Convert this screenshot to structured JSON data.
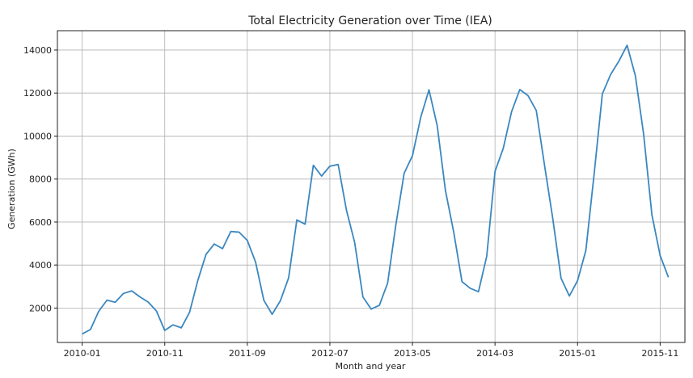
{
  "chart_data": {
    "type": "line",
    "title": "Total Electricity Generation over Time (IEA)",
    "xlabel": "Month and year",
    "ylabel": "Generation (GWh)",
    "grid": true,
    "x_tick_labels": [
      "2010-01",
      "2010-11",
      "2011-09",
      "2012-07",
      "2013-05",
      "2014-03",
      "2015-01",
      "2015-11"
    ],
    "y_ticks": [
      2000,
      4000,
      6000,
      8000,
      10000,
      12000,
      14000
    ],
    "ylim": [
      400,
      14900
    ],
    "xlim": [
      "2009-10",
      "2016-02"
    ],
    "series": [
      {
        "color": "#3a87c0",
        "x": [
          "2010-01",
          "2010-02",
          "2010-03",
          "2010-04",
          "2010-05",
          "2010-06",
          "2010-07",
          "2010-08",
          "2010-09",
          "2010-10",
          "2010-11",
          "2010-12",
          "2011-01",
          "2011-02",
          "2011-03",
          "2011-04",
          "2011-05",
          "2011-06",
          "2011-07",
          "2011-08",
          "2011-09",
          "2011-10",
          "2011-11",
          "2011-12",
          "2012-01",
          "2012-02",
          "2012-03",
          "2012-04",
          "2012-05",
          "2012-06",
          "2012-07",
          "2012-08",
          "2012-09",
          "2012-10",
          "2012-11",
          "2012-12",
          "2013-01",
          "2013-02",
          "2013-03",
          "2013-04",
          "2013-05",
          "2013-06",
          "2013-07",
          "2013-08",
          "2013-09",
          "2013-10",
          "2013-11",
          "2013-12",
          "2014-01",
          "2014-02",
          "2014-03",
          "2014-04",
          "2014-05",
          "2014-06",
          "2014-07",
          "2014-08",
          "2014-09",
          "2014-10",
          "2014-11",
          "2014-12",
          "2015-01",
          "2015-02",
          "2015-03",
          "2015-04",
          "2015-05",
          "2015-06",
          "2015-07",
          "2015-08",
          "2015-09",
          "2015-10",
          "2015-11",
          "2015-12"
        ],
        "y": [
          800,
          1000,
          1850,
          2370,
          2270,
          2680,
          2800,
          2520,
          2280,
          1860,
          960,
          1220,
          1080,
          1800,
          3280,
          4500,
          4980,
          4760,
          5560,
          5530,
          5150,
          4130,
          2360,
          1710,
          2340,
          3400,
          6100,
          5900,
          8640,
          8140,
          8600,
          8680,
          6560,
          5050,
          2520,
          1950,
          2130,
          3170,
          5890,
          8270,
          9090,
          10870,
          12150,
          10480,
          7460,
          5530,
          3230,
          2920,
          2760,
          4410,
          8360,
          9430,
          11130,
          12160,
          11880,
          11190,
          8640,
          6160,
          3390,
          2560,
          3280,
          4680,
          8220,
          11960,
          12860,
          13480,
          14220,
          12810,
          10100,
          6330,
          4440,
          3430
        ]
      }
    ]
  }
}
